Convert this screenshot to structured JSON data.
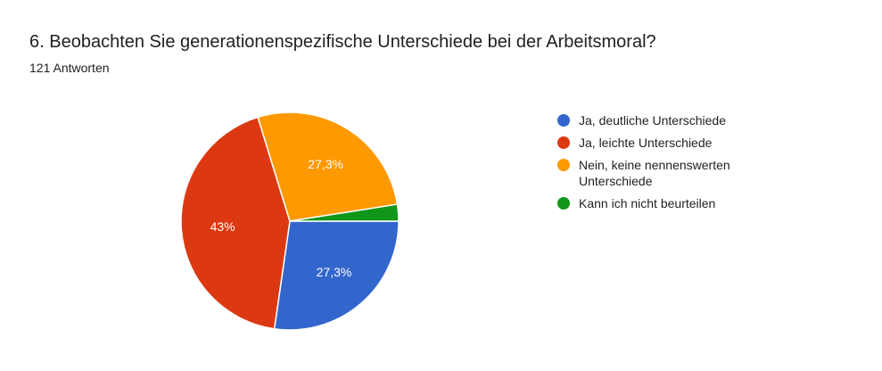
{
  "header": {
    "title": "6. Beobachten Sie generationenspezifische Unterschiede bei der Arbeitsmoral?",
    "subtitle": "121 Antworten"
  },
  "legend": {
    "items": [
      {
        "label": "Ja, deutliche Unterschiede",
        "color": "#3366cc"
      },
      {
        "label": "Ja, leichte Unterschiede",
        "color": "#dc3912"
      },
      {
        "label": "Nein, keine nennenswerten Unterschiede",
        "color": "#ff9900"
      },
      {
        "label": "Kann ich nicht beurteilen",
        "color": "#109618"
      }
    ]
  },
  "chart_data": {
    "type": "pie",
    "title": "6. Beobachten Sie generationenspezifische Unterschiede bei der Arbeitsmoral?",
    "subtitle": "121 Antworten",
    "total_responses": 121,
    "categories": [
      "Ja, deutliche Unterschiede",
      "Ja, leichte Unterschiede",
      "Nein, keine nennenswerten Unterschiede",
      "Kann ich nicht beurteilen"
    ],
    "values": [
      33,
      52,
      33,
      3
    ],
    "percentages": [
      27.3,
      43.0,
      27.3,
      2.5
    ],
    "slice_labels": [
      "27,3%",
      "43%",
      "27,3%",
      ""
    ],
    "colors": [
      "#3366cc",
      "#dc3912",
      "#ff9900",
      "#109618"
    ],
    "start_angle_deg": 0,
    "direction": "clockwise",
    "legend_position": "right"
  }
}
